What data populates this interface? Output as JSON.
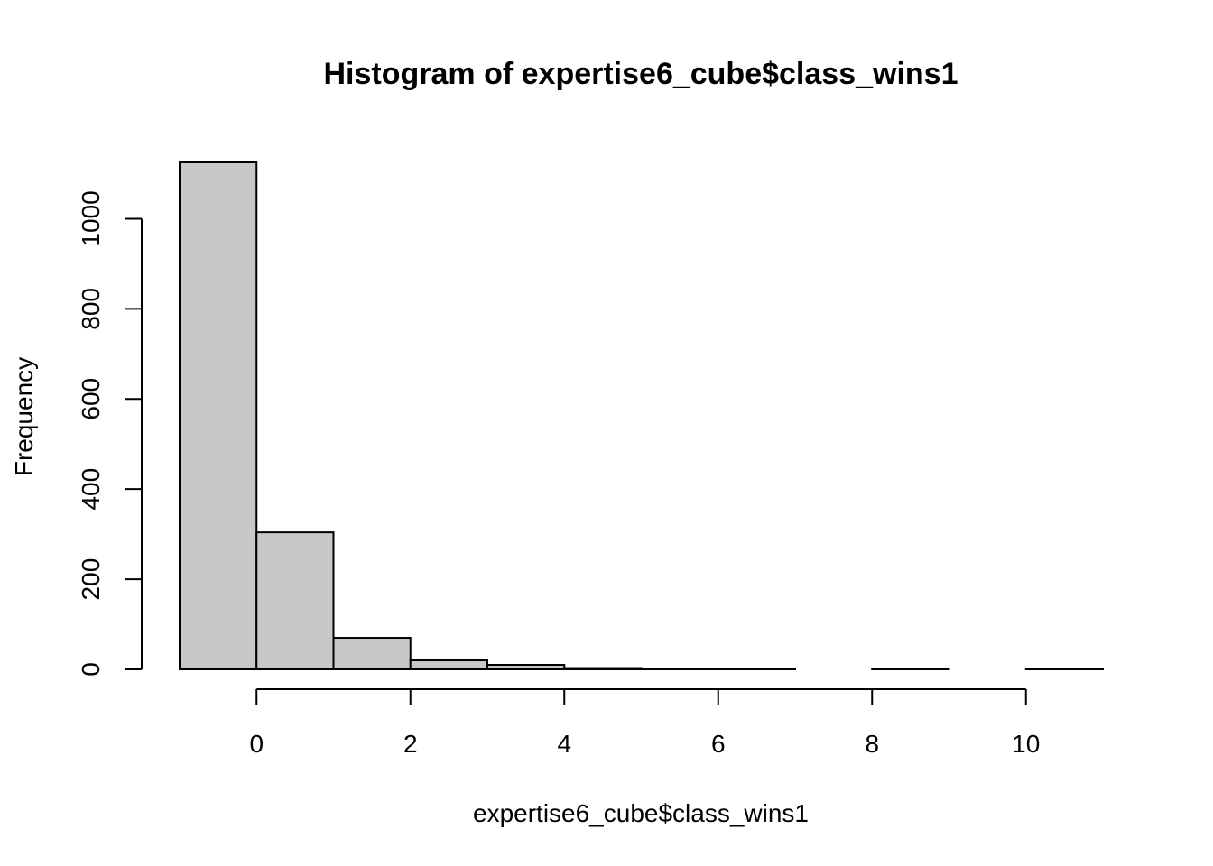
{
  "chart_data": {
    "type": "bar",
    "subtype": "histogram",
    "title": "Histogram of expertise6_cube$class_wins1",
    "xlabel": "expertise6_cube$class_wins1",
    "ylabel": "Frequency",
    "bin_edges": [
      -1,
      0,
      1,
      2,
      3,
      4,
      5,
      6,
      7,
      8,
      9,
      10,
      11
    ],
    "values": [
      1125,
      304,
      70,
      20,
      10,
      3,
      1,
      1,
      0,
      1,
      0,
      1
    ],
    "xlim": [
      -1,
      11
    ],
    "ylim": [
      0,
      1125
    ],
    "x_ticks": [
      0,
      2,
      4,
      6,
      8,
      10
    ],
    "x_tick_labels": [
      "0",
      "2",
      "4",
      "6",
      "8",
      "10"
    ],
    "y_ticks": [
      0,
      200,
      400,
      600,
      800,
      1000
    ],
    "y_tick_labels": [
      "0",
      "200",
      "400",
      "600",
      "800",
      "1000"
    ],
    "bar_color": "#c8c8c8",
    "bar_border_color": "#000000",
    "grid": false,
    "legend": "none"
  }
}
